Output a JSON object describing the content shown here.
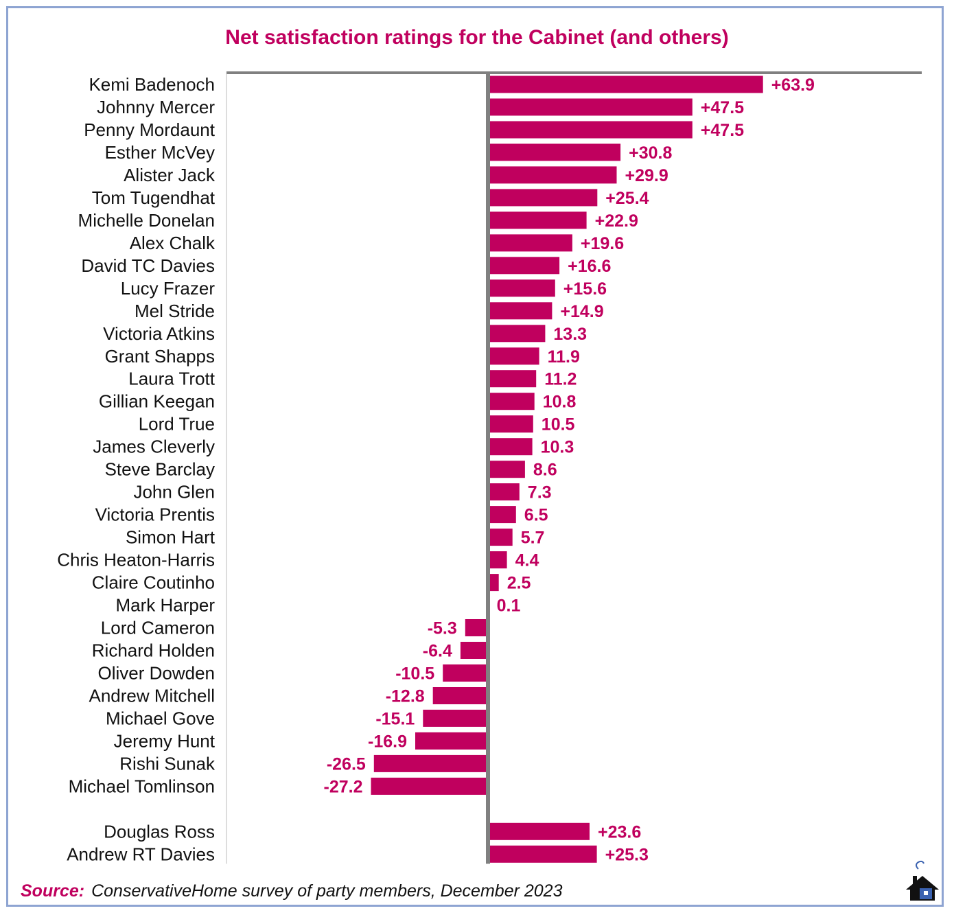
{
  "chart_data": {
    "type": "bar",
    "orientation": "horizontal",
    "title": "Net satisfaction ratings for the Cabinet (and others)",
    "bar_color": "#c0005e",
    "label_color": "#c0005e",
    "categories": [
      "Kemi Badenoch",
      "Johnny Mercer",
      "Penny Mordaunt",
      "Esther McVey",
      "Alister Jack",
      "Tom Tugendhat",
      "Michelle Donelan",
      "Alex Chalk",
      "David TC Davies",
      "Lucy Frazer",
      "Mel Stride",
      "Victoria Atkins",
      "Grant Shapps",
      "Laura Trott",
      "Gillian Keegan",
      "Lord True",
      "James Cleverly",
      "Steve Barclay",
      "John Glen",
      "Victoria Prentis",
      "Simon Hart",
      "Chris Heaton-Harris",
      "Claire Coutinho",
      "Mark Harper",
      "Lord Cameron",
      "Richard Holden",
      "Oliver Dowden",
      "Andrew Mitchell",
      "Michael Gove",
      "Jeremy Hunt",
      "Rishi Sunak",
      "Michael Tomlinson",
      "",
      "Douglas Ross",
      "Andrew RT Davies"
    ],
    "values": [
      63.9,
      47.5,
      47.5,
      30.8,
      29.9,
      25.4,
      22.9,
      19.6,
      16.6,
      15.6,
      14.9,
      13.3,
      11.9,
      11.2,
      10.8,
      10.5,
      10.3,
      8.6,
      7.3,
      6.5,
      5.7,
      4.4,
      2.5,
      0.1,
      -5.3,
      -6.4,
      -10.5,
      -12.8,
      -15.1,
      -16.9,
      -26.5,
      -27.2,
      null,
      23.6,
      25.3
    ],
    "data_labels": [
      "+63.9",
      "+47.5",
      "+47.5",
      "+30.8",
      "+29.9",
      "+25.4",
      "+22.9",
      "+19.6",
      "+16.6",
      "+15.6",
      "+14.9",
      "13.3",
      "11.9",
      "11.2",
      "10.8",
      "10.5",
      "10.3",
      "8.6",
      "7.3",
      "6.5",
      "5.7",
      "4.4",
      "2.5",
      "0.1",
      "-5.3",
      "-6.4",
      "-10.5",
      "-12.8",
      "-15.1",
      "-16.9",
      "-26.5",
      "-27.2",
      "",
      "+23.6",
      "+25.3"
    ],
    "xlim": [
      -60,
      100
    ],
    "grid": false,
    "legend": "none"
  },
  "source": {
    "label": "Source:",
    "text": "ConservativeHome survey of party members, December 2023"
  }
}
